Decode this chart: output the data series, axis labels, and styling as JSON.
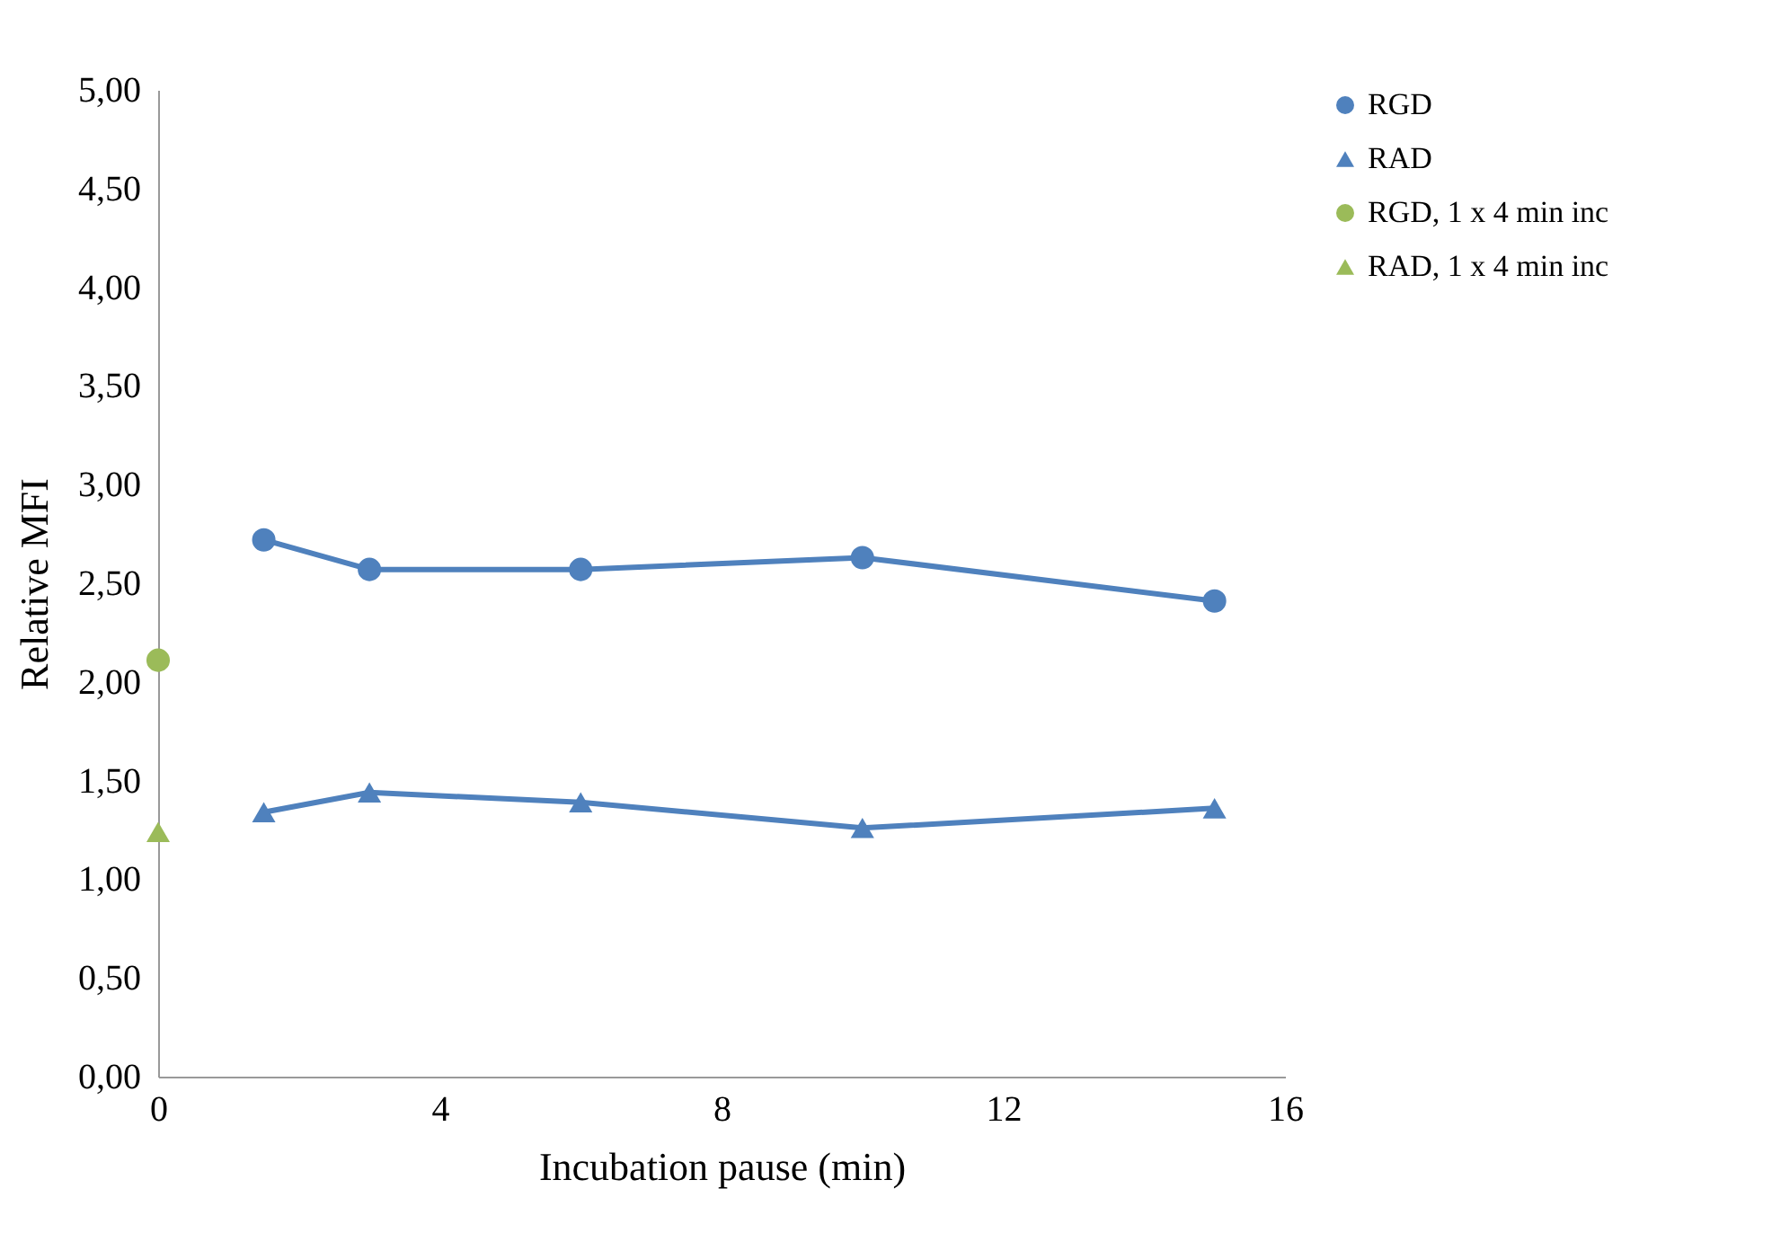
{
  "chart_data": {
    "type": "line",
    "xlabel": "Incubation pause (min)",
    "ylabel": "Relative MFI",
    "xlim": [
      0,
      16
    ],
    "xticks": [
      0,
      4,
      8,
      12,
      16
    ],
    "ylim": [
      0,
      5
    ],
    "yticks": [
      {
        "value": 0,
        "label": "0,00"
      },
      {
        "value": 0.5,
        "label": "0,50"
      },
      {
        "value": 1,
        "label": "1,00"
      },
      {
        "value": 1.5,
        "label": "1,50"
      },
      {
        "value": 2,
        "label": "2,00"
      },
      {
        "value": 2.5,
        "label": "2,50"
      },
      {
        "value": 3,
        "label": "3,00"
      },
      {
        "value": 3.5,
        "label": "3,50"
      },
      {
        "value": 4,
        "label": "4,00"
      },
      {
        "value": 4.5,
        "label": "4,50"
      },
      {
        "value": 5,
        "label": "5,00"
      }
    ],
    "grid": false,
    "legend": "right",
    "line_style": "solid",
    "series": [
      {
        "name": "RGD",
        "color": "#4f81bd",
        "marker": "circle",
        "x": [
          1.5,
          3,
          6,
          10,
          15
        ],
        "values": [
          2.72,
          2.57,
          2.57,
          2.63,
          2.41
        ]
      },
      {
        "name": "RAD",
        "color": "#4f81bd",
        "marker": "triangle",
        "x": [
          1.5,
          3,
          6,
          10,
          15
        ],
        "values": [
          1.34,
          1.44,
          1.39,
          1.26,
          1.36
        ]
      },
      {
        "name": "RGD, 1 x 4 min inc",
        "color": "#9bbb59",
        "marker": "circle",
        "x": [
          0
        ],
        "values": [
          2.11
        ]
      },
      {
        "name": "RAD, 1 x 4 min inc",
        "color": "#9bbb59",
        "marker": "triangle",
        "x": [
          0
        ],
        "values": [
          1.24
        ]
      }
    ]
  }
}
